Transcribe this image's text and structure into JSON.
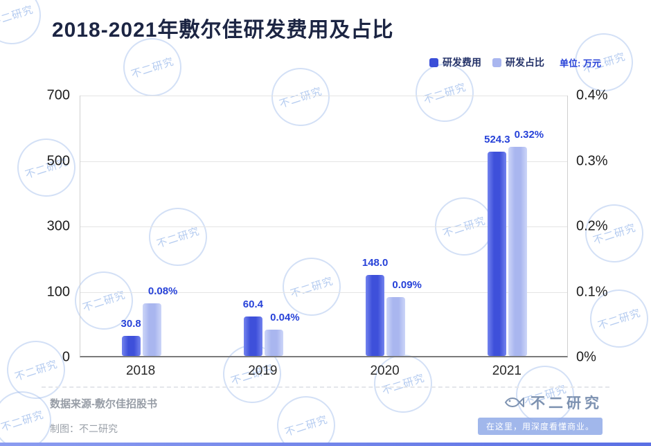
{
  "title": "2018-2021年敷尔佳研发费用及占比",
  "legend": {
    "fee_label": "研发费用",
    "ratio_label": "研发占比",
    "unit_label": "单位: 万元"
  },
  "colors": {
    "fee_bar": "#3e50da",
    "ratio_bar": "#a9b6ef",
    "value_label": "#2742d8",
    "bottom_accent": "#5a6fe4"
  },
  "chart_data": {
    "type": "bar",
    "title": "2018-2021年敷尔佳研发费用及占比",
    "categories": [
      "2018",
      "2019",
      "2020",
      "2021"
    ],
    "series": [
      {
        "name": "研发费用",
        "axis": "left",
        "unit": "万元",
        "values": [
          30.8,
          60.4,
          148.0,
          524.3
        ],
        "labels": [
          "30.8",
          "60.4",
          "148.0",
          "524.3"
        ]
      },
      {
        "name": "研发占比",
        "axis": "right",
        "unit": "%",
        "values": [
          0.08,
          0.04,
          0.09,
          0.32
        ],
        "labels": [
          "0.08%",
          "0.04%",
          "0.09%",
          "0.32%"
        ]
      }
    ],
    "left_axis": {
      "ticks": [
        "700",
        "500",
        "300",
        "100",
        "0"
      ],
      "tick_values": [
        700,
        500,
        300,
        100,
        0
      ]
    },
    "right_axis": {
      "ticks": [
        "0.4%",
        "0.3%",
        "0.2%",
        "0.1%",
        "0%"
      ],
      "tick_values": [
        0.4,
        0.3,
        0.2,
        0.1,
        0
      ],
      "max": 0.4
    },
    "grid": true,
    "legend_position": "top-right",
    "xlabel": "",
    "ylabel": ""
  },
  "footer": {
    "source": "数据来源-敷尔佳招股书",
    "credit": "制图：不二研究",
    "brand": "不二研究",
    "slogan": "在这里，用深度看懂商业。"
  },
  "watermark": {
    "text": "不二研究"
  }
}
